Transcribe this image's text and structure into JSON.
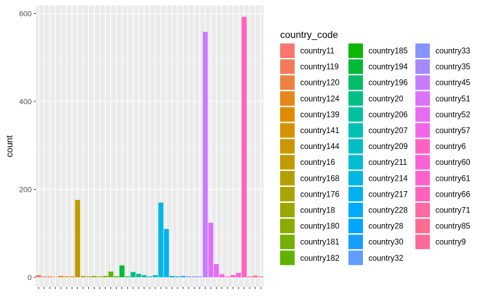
{
  "chart_data": {
    "type": "bar",
    "ylabel": "count",
    "xlabel": "",
    "ylim": [
      0,
      630
    ],
    "yticks": [
      0,
      200,
      400,
      600
    ],
    "grid": true,
    "legend_position": "right",
    "legend_title": "country_code",
    "categories": [
      "country11",
      "country119",
      "country120",
      "country124",
      "country139",
      "country141",
      "country144",
      "country16",
      "country168",
      "country176",
      "country18",
      "country180",
      "country181",
      "country182",
      "country185",
      "country194",
      "country196",
      "country20",
      "country206",
      "country207",
      "country209",
      "country211",
      "country214",
      "country217",
      "country228",
      "country28",
      "country30",
      "country32",
      "country33",
      "country35",
      "country45",
      "country51",
      "country52",
      "country57",
      "country6",
      "country60",
      "country61",
      "country66",
      "country71",
      "country85",
      "country9"
    ],
    "values": [
      5,
      2,
      2,
      1,
      3,
      2,
      2,
      176,
      3,
      2,
      3,
      2,
      3,
      13,
      2,
      27,
      2,
      12,
      8,
      5,
      2,
      5,
      170,
      110,
      3,
      2,
      3,
      2,
      2,
      2,
      558,
      124,
      30,
      7,
      2,
      5,
      10,
      592,
      2,
      4,
      2
    ],
    "colors": [
      "#F8766D",
      "#F37B59",
      "#ED8141",
      "#E7861B",
      "#DF8B00",
      "#D69100",
      "#CC9600",
      "#C19A00",
      "#B59F00",
      "#A8A400",
      "#9AA800",
      "#8AAB00",
      "#77AF00",
      "#5FB300",
      "#0CB702",
      "#00BA38",
      "#00BE67",
      "#00C086",
      "#00C19F",
      "#00C0B4",
      "#00BFC4",
      "#00BDD4",
      "#00B8E3",
      "#00B2F0",
      "#00ABFD",
      "#00A5FF",
      "#169EFF",
      "#619CFF",
      "#8794FF",
      "#A58AFF",
      "#C77CFF",
      "#DC71FA",
      "#E76BF3",
      "#F166E8",
      "#FF61C3",
      "#FC61D5",
      "#FF61CC",
      "#FF62BC",
      "#FF6AA3",
      "#FF6C91",
      "#FF6A98"
    ]
  }
}
